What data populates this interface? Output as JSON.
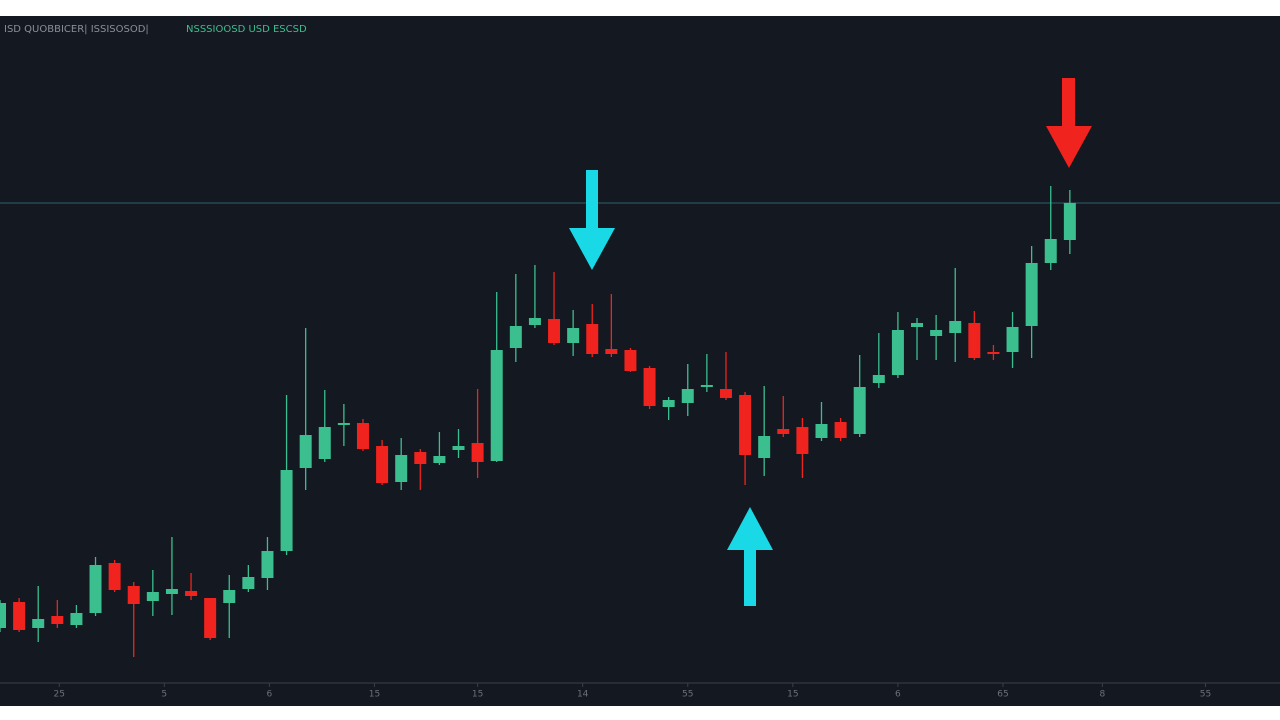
{
  "chart_data": {
    "type": "candlestick",
    "title": "ISD QUOBBICER| ISSISOSOD|",
    "subtitle": "NSSSIOOSD USD ESCSD",
    "x": [
      0,
      1,
      2,
      3,
      4,
      5,
      6,
      7,
      8,
      9,
      10,
      11,
      12,
      13,
      14,
      15,
      16,
      17,
      18,
      19,
      20,
      21,
      22,
      23,
      24,
      25,
      26,
      27,
      28,
      29,
      30,
      31,
      32,
      33,
      34,
      35,
      36,
      37,
      38,
      39,
      40,
      41,
      42,
      43,
      44,
      45,
      46,
      47,
      48,
      49,
      50,
      51,
      52,
      53,
      54,
      55,
      56
    ],
    "open": [
      52,
      78,
      52,
      64,
      55,
      67,
      117,
      94,
      79,
      86,
      89,
      82,
      77,
      91,
      102,
      129,
      212,
      221,
      256,
      257,
      234,
      198,
      228,
      217,
      230,
      237,
      219,
      332,
      355,
      361,
      337,
      356,
      331,
      330,
      312,
      273,
      277,
      294,
      291,
      285,
      222,
      251,
      253,
      242,
      258,
      246,
      297,
      305,
      353,
      344,
      347,
      357,
      328,
      328,
      354,
      417,
      440
    ],
    "high": [
      80,
      82,
      94,
      80,
      75,
      123,
      120,
      98,
      110,
      143,
      107,
      82,
      105,
      115,
      143,
      285,
      352,
      290,
      276,
      261,
      240,
      242,
      231,
      248,
      251,
      291,
      388,
      406,
      415,
      408,
      370,
      376,
      386,
      332,
      314,
      283,
      316,
      326,
      328,
      288,
      294,
      284,
      262,
      278,
      262,
      325,
      347,
      368,
      362,
      365,
      412,
      369,
      335,
      368,
      434,
      494,
      490
    ],
    "low": [
      48,
      48,
      38,
      52,
      52,
      64,
      88,
      23,
      64,
      65,
      80,
      40,
      42,
      88,
      90,
      125,
      190,
      218,
      234,
      229,
      195,
      190,
      190,
      215,
      222,
      202,
      218,
      318,
      352,
      335,
      324,
      323,
      323,
      308,
      271,
      260,
      264,
      288,
      280,
      195,
      204,
      243,
      202,
      239,
      239,
      243,
      292,
      302,
      320,
      320,
      318,
      320,
      320,
      312,
      322,
      410,
      426
    ],
    "close": [
      77,
      50,
      61,
      56,
      67,
      115,
      90,
      76,
      88,
      91,
      84,
      42,
      90,
      103,
      129,
      210,
      245,
      253,
      257,
      231,
      197,
      225,
      216,
      224,
      234,
      218,
      330,
      354,
      362,
      337,
      352,
      326,
      326,
      309,
      274,
      280,
      291,
      295,
      282,
      225,
      244,
      246,
      226,
      256,
      242,
      293,
      305,
      350,
      357,
      350,
      359,
      322,
      327,
      353,
      417,
      441,
      477
    ],
    "up_color": "#3bbf8f",
    "down_color": "#f0231e",
    "xlim": [
      0,
      67
    ],
    "ylim": [
      0,
      660
    ],
    "xticks": [
      {
        "value": 3.1,
        "label": "25"
      },
      {
        "value": 8.6,
        "label": "5"
      },
      {
        "value": 14.1,
        "label": "6"
      },
      {
        "value": 19.6,
        "label": "15"
      },
      {
        "value": 25,
        "label": "15"
      },
      {
        "value": 30.5,
        "label": "14"
      },
      {
        "value": 36,
        "label": "55"
      },
      {
        "value": 41.5,
        "label": "15"
      },
      {
        "value": 47,
        "label": "6"
      },
      {
        "value": 52.5,
        "label": "65"
      },
      {
        "value": 57.7,
        "label": "8"
      },
      {
        "value": 63.1,
        "label": "55"
      }
    ]
  }
}
